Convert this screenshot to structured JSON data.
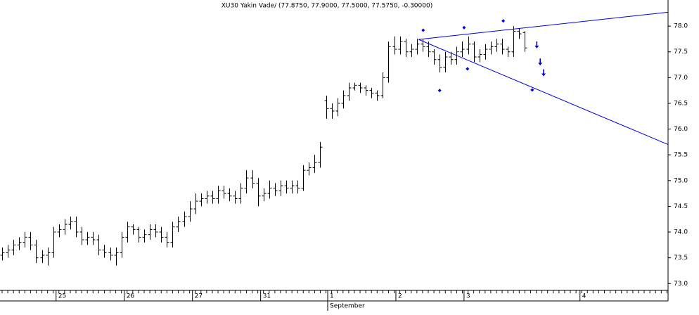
{
  "chart_data": {
    "type": "ohlc",
    "title": "XU30 Yakin Vade/ (77.8750, 77.9000, 77.5000, 77.5750, -0.30000)",
    "color": "#000000",
    "open": [
      73.55,
      73.6,
      73.65,
      73.75,
      73.8,
      73.9,
      73.75,
      73.5,
      73.55,
      73.6,
      74.0,
      74.05,
      74.15,
      74.2,
      74.0,
      73.85,
      73.9,
      73.85,
      73.65,
      73.6,
      73.55,
      73.6,
      73.9,
      74.1,
      74.05,
      73.9,
      73.95,
      74.05,
      74.0,
      73.9,
      73.8,
      74.1,
      74.2,
      74.3,
      74.45,
      74.6,
      74.65,
      74.7,
      74.65,
      74.8,
      74.75,
      74.7,
      74.65,
      74.85,
      75.05,
      74.95,
      74.7,
      74.75,
      74.85,
      74.8,
      74.9,
      74.85,
      74.9,
      74.85,
      75.2,
      75.25,
      75.35,
      76.55,
      76.4,
      76.35,
      76.5,
      76.65,
      76.8,
      76.85,
      76.8,
      76.75,
      76.7,
      76.65,
      77.0,
      77.6,
      77.55,
      77.7,
      77.5,
      77.55,
      77.65,
      77.6,
      77.5,
      77.35,
      77.2,
      77.4,
      77.35,
      77.5,
      77.55,
      77.65,
      77.4,
      77.45,
      77.55,
      77.6,
      77.65,
      77.55,
      77.5,
      77.9,
      77.875
    ],
    "high": [
      73.7,
      73.75,
      73.85,
      73.9,
      74.0,
      74.0,
      73.85,
      73.65,
      73.7,
      74.1,
      74.15,
      74.25,
      74.3,
      74.3,
      74.1,
      74.0,
      74.0,
      73.95,
      73.75,
      73.7,
      73.7,
      74.0,
      74.2,
      74.15,
      74.1,
      74.05,
      74.15,
      74.15,
      74.1,
      74.0,
      74.2,
      74.3,
      74.4,
      74.6,
      74.75,
      74.75,
      74.8,
      74.8,
      74.9,
      74.9,
      74.85,
      74.8,
      74.95,
      75.2,
      75.2,
      75.05,
      74.85,
      75.0,
      74.95,
      75.0,
      75.0,
      75.0,
      75.0,
      75.3,
      75.35,
      75.5,
      75.75,
      76.65,
      76.5,
      76.6,
      76.75,
      76.9,
      76.9,
      76.9,
      76.85,
      76.8,
      76.75,
      77.1,
      77.7,
      77.8,
      77.8,
      77.75,
      77.65,
      77.75,
      77.75,
      77.7,
      77.55,
      77.45,
      77.5,
      77.5,
      77.6,
      77.7,
      77.8,
      77.7,
      77.55,
      77.65,
      77.7,
      77.75,
      77.75,
      77.6,
      78.0,
      77.95,
      77.9
    ],
    "low": [
      73.45,
      73.5,
      73.55,
      73.65,
      73.7,
      73.65,
      73.4,
      73.4,
      73.35,
      73.5,
      73.9,
      73.95,
      74.05,
      73.9,
      73.75,
      73.75,
      73.75,
      73.55,
      73.5,
      73.45,
      73.35,
      73.5,
      73.8,
      73.95,
      73.8,
      73.8,
      73.85,
      73.9,
      73.8,
      73.7,
      73.7,
      74.0,
      74.1,
      74.2,
      74.35,
      74.5,
      74.55,
      74.55,
      74.55,
      74.65,
      74.6,
      74.55,
      74.55,
      74.75,
      74.85,
      74.5,
      74.6,
      74.65,
      74.7,
      74.7,
      74.75,
      74.75,
      74.75,
      74.8,
      75.1,
      75.15,
      75.25,
      76.2,
      76.2,
      76.25,
      76.4,
      76.55,
      76.75,
      76.7,
      76.65,
      76.6,
      76.55,
      76.6,
      76.9,
      77.45,
      77.45,
      77.4,
      77.4,
      77.45,
      77.5,
      77.4,
      77.25,
      77.1,
      77.1,
      77.25,
      77.25,
      77.4,
      77.45,
      77.3,
      77.3,
      77.35,
      77.45,
      77.5,
      77.45,
      77.4,
      77.4,
      77.75,
      77.5
    ],
    "close": [
      73.6,
      73.65,
      73.75,
      73.8,
      73.9,
      73.75,
      73.5,
      73.55,
      73.6,
      74.0,
      74.05,
      74.15,
      74.2,
      74.0,
      73.85,
      73.9,
      73.85,
      73.65,
      73.6,
      73.55,
      73.6,
      73.9,
      74.1,
      74.05,
      73.9,
      73.95,
      74.05,
      74.0,
      73.9,
      73.8,
      74.1,
      74.2,
      74.3,
      74.45,
      74.6,
      74.65,
      74.7,
      74.65,
      74.8,
      74.75,
      74.7,
      74.65,
      74.85,
      75.05,
      74.95,
      74.7,
      74.75,
      74.85,
      74.8,
      74.9,
      74.85,
      74.9,
      74.85,
      75.2,
      75.25,
      75.35,
      75.65,
      76.4,
      76.35,
      76.5,
      76.65,
      76.8,
      76.85,
      76.8,
      76.75,
      76.7,
      76.65,
      77.0,
      77.6,
      77.55,
      77.7,
      77.5,
      77.55,
      77.65,
      77.6,
      77.5,
      77.35,
      77.2,
      77.4,
      77.35,
      77.5,
      77.55,
      77.65,
      77.4,
      77.45,
      77.55,
      77.6,
      77.65,
      77.55,
      77.5,
      77.9,
      77.85,
      77.575
    ],
    "xlim": [
      -0.37,
      117.2
    ],
    "xticks": [
      {
        "value": 9.5,
        "label": "25"
      },
      {
        "value": 21.5,
        "label": "26"
      },
      {
        "value": 33.5,
        "label": "27"
      },
      {
        "value": 45.5,
        "label": "31"
      },
      {
        "value": 57.3,
        "label": "1"
      },
      {
        "value": 69.3,
        "label": "2"
      },
      {
        "value": 81.3,
        "label": "3"
      },
      {
        "value": 101.7,
        "label": "4"
      }
    ],
    "x_sublabel": {
      "value": 57.3,
      "label": "September"
    },
    "ylim": [
      72.84,
      78.37
    ],
    "yticks": [
      {
        "value": 73,
        "label": "73.0"
      },
      {
        "value": 73.5,
        "label": "73.5"
      },
      {
        "value": 74,
        "label": "74.0"
      },
      {
        "value": 74.5,
        "label": "74.5"
      },
      {
        "value": 75,
        "label": "75.0"
      },
      {
        "value": 75.5,
        "label": "75.5"
      },
      {
        "value": 76,
        "label": "76.0"
      },
      {
        "value": 76.5,
        "label": "76.5"
      },
      {
        "value": 77,
        "label": "77.0"
      },
      {
        "value": 77.5,
        "label": "77.5"
      },
      {
        "value": 78,
        "label": "78.0"
      }
    ],
    "annotations": {
      "color": "#0000dd",
      "trendlines": [
        {
          "x": [
            73.3,
            117.2
          ],
          "y": [
            77.74,
            78.27
          ]
        },
        {
          "x": [
            73.3,
            117.2
          ],
          "y": [
            77.74,
            75.7
          ]
        }
      ],
      "diamonds": {
        "x": [
          74.1,
          77.0,
          81.3,
          81.9,
          88.2,
          93.3
        ],
        "y": [
          77.92,
          76.75,
          77.97,
          77.17,
          78.1,
          76.76
        ]
      },
      "arrows": {
        "x": [
          94.1,
          94.7,
          95.3
        ],
        "y": [
          77.62,
          77.29,
          77.08
        ]
      }
    }
  }
}
